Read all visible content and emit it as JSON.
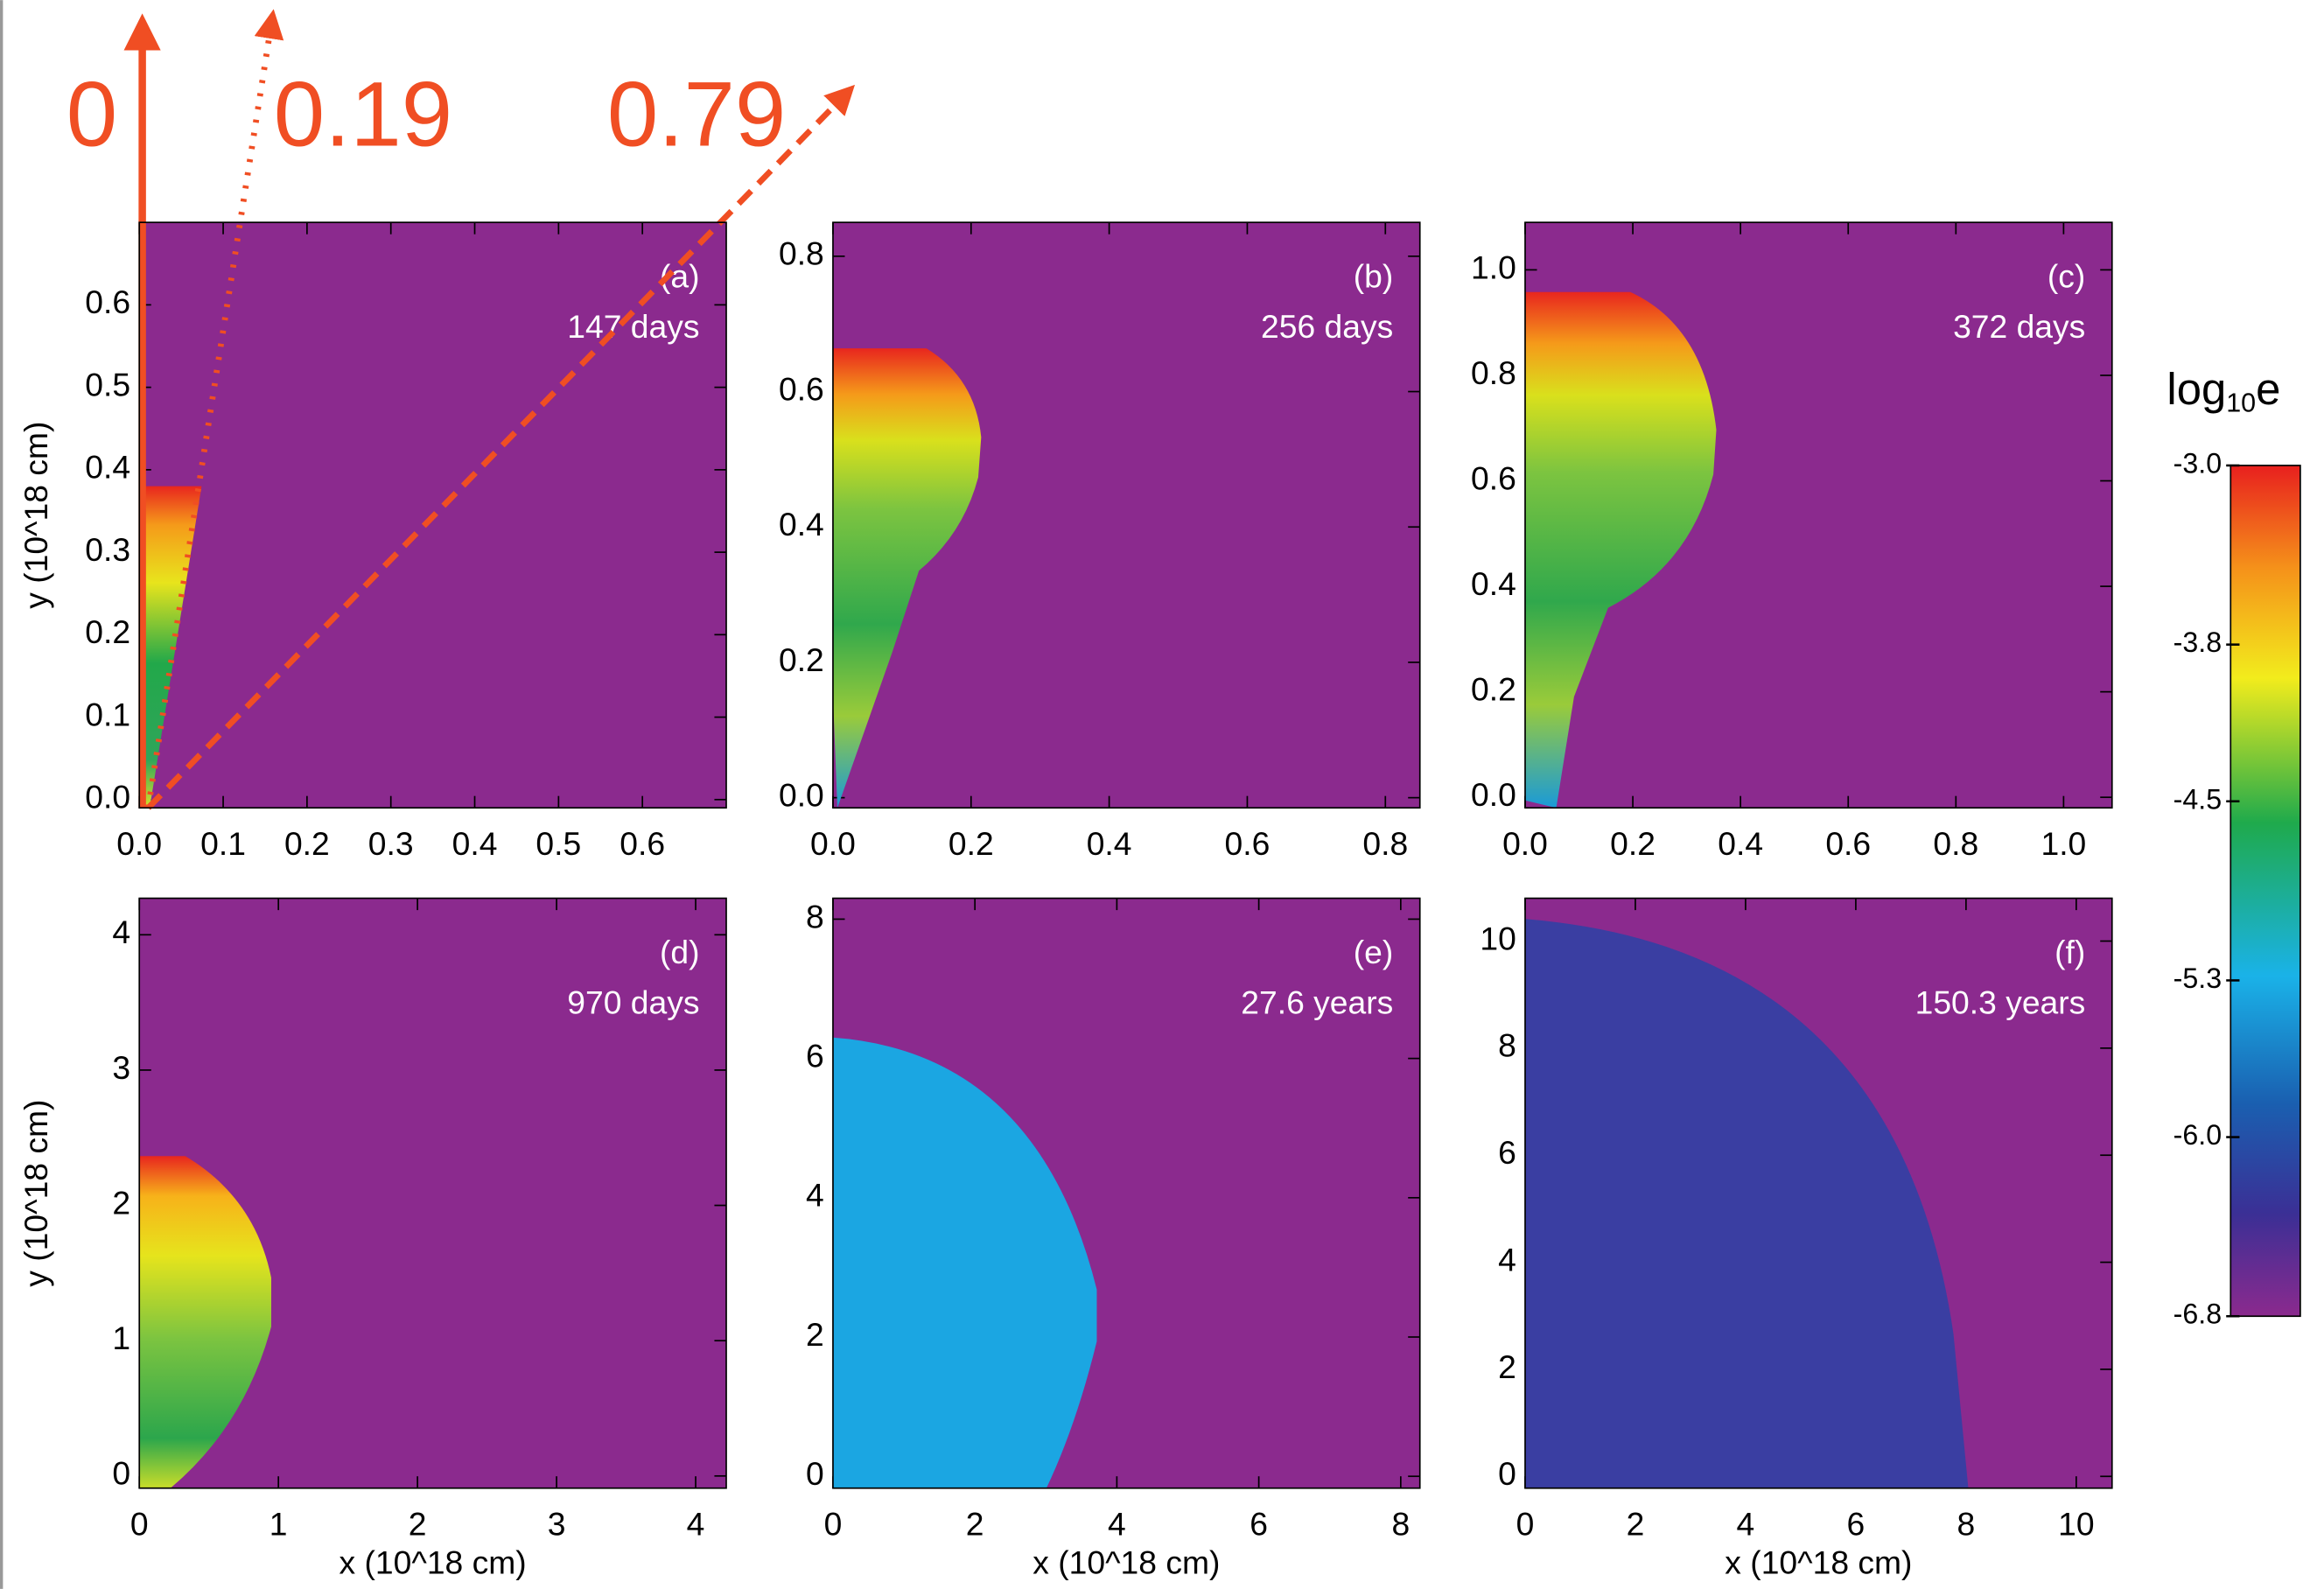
{
  "chart_data": [
    {
      "type": "image",
      "label": "(a)",
      "annotation": "147 days",
      "ylabel": "y (10^18 cm)",
      "xlim": [
        0,
        0.7
      ],
      "ylim": [
        -0.01,
        0.7
      ],
      "xticks": [
        {
          "value": 0,
          "label": "0.0"
        },
        0.1,
        0.2,
        0.3,
        0.4,
        0.5,
        0.6
      ],
      "yticks": [
        {
          "value": 0,
          "label": "0.0"
        },
        0.1,
        0.2,
        0.3,
        0.4,
        0.5,
        0.6
      ]
    },
    {
      "type": "image",
      "label": "(b)",
      "annotation": "256 days",
      "xlim": [
        0,
        0.85
      ],
      "ylim": [
        -0.015,
        0.85
      ],
      "xticks": [
        {
          "value": 0,
          "label": "0.0"
        },
        0.2,
        0.4,
        0.6,
        0.8
      ],
      "yticks": [
        {
          "value": 0,
          "label": "0.0"
        },
        0.2,
        0.4,
        0.6,
        0.8
      ]
    },
    {
      "type": "image",
      "label": "(c)",
      "annotation": "372 days",
      "xlim": [
        0,
        1.09
      ],
      "ylim": [
        -0.02,
        1.09
      ],
      "xticks": [
        {
          "value": 0,
          "label": "0.0"
        },
        0.2,
        0.4,
        0.6,
        0.8,
        {
          "value": 1,
          "label": "1.0"
        }
      ],
      "yticks": [
        {
          "value": 0,
          "label": "0.0"
        },
        0.2,
        0.4,
        0.6,
        0.8,
        {
          "value": 1,
          "label": "1.0"
        }
      ]
    },
    {
      "type": "image",
      "label": "(d)",
      "annotation": "970 days",
      "ylabel": "y (10^18 cm)",
      "xlabel": "x (10^18 cm)",
      "xlim": [
        0,
        4.22
      ],
      "ylim": [
        -0.09,
        4.27
      ],
      "xticks": [
        0,
        1,
        2,
        3,
        4
      ],
      "yticks": [
        0,
        1,
        2,
        3,
        4
      ]
    },
    {
      "type": "image",
      "label": "(e)",
      "annotation": "27.6 years",
      "xlabel": "x (10^18 cm)",
      "xlim": [
        0,
        8.27
      ],
      "ylim": [
        -0.17,
        8.3
      ],
      "xticks": [
        0,
        2,
        4,
        6,
        8
      ],
      "yticks": [
        0,
        2,
        4,
        6,
        8
      ]
    },
    {
      "type": "image",
      "label": "(f)",
      "annotation": "150.3 years",
      "xlabel": "x (10^18 cm)",
      "xlim": [
        0,
        10.65
      ],
      "ylim": [
        -0.22,
        10.8
      ],
      "xticks": [
        0,
        2,
        4,
        6,
        8,
        10
      ],
      "yticks": [
        0,
        2,
        4,
        6,
        8,
        10
      ]
    },
    {
      "type": "colorbar",
      "title": [
        "log",
        "10",
        "e"
      ],
      "lim": [
        -6.8,
        -3.0
      ],
      "ticks": [
        {
          "value": -3,
          "label": "-3.0"
        },
        -3.8,
        -4.5,
        -5.3,
        {
          "value": -6,
          "label": "-6.0"
        },
        -6.8
      ]
    }
  ],
  "annotations": [
    "0",
    "0.19",
    "0.79"
  ]
}
